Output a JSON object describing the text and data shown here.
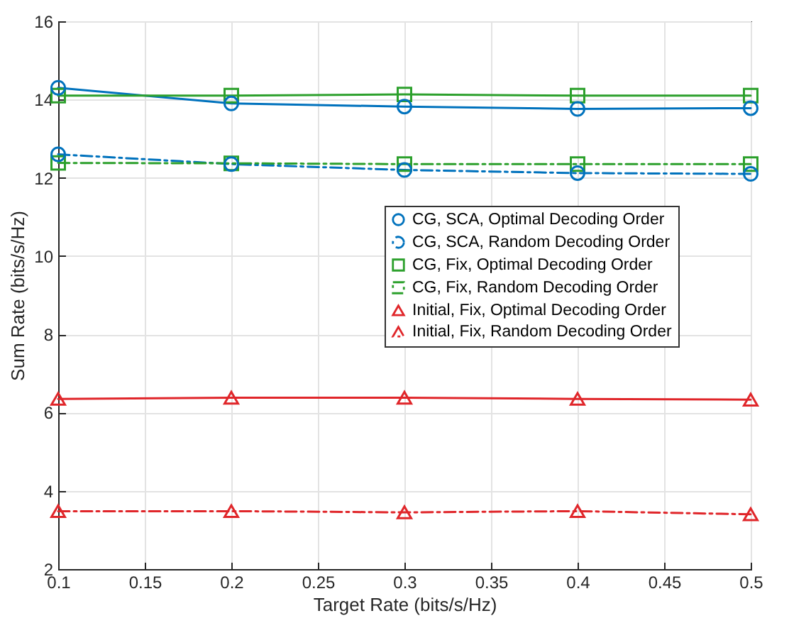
{
  "chart_data": {
    "type": "line",
    "xlabel": "Target Rate (bits/s/Hz)",
    "ylabel": "Sum Rate (bits/s/Hz)",
    "x": [
      0.1,
      0.2,
      0.3,
      0.4,
      0.5
    ],
    "series": [
      {
        "name": "CG, SCA, Optimal Decoding Order",
        "color": "#0072bd",
        "marker": "circle",
        "line_style": "solid",
        "values": [
          14.3,
          13.9,
          13.82,
          13.76,
          13.78
        ]
      },
      {
        "name": "CG, SCA, Random Decoding Order",
        "color": "#0072bd",
        "marker": "circle",
        "line_style": "dashdot",
        "values": [
          12.6,
          12.35,
          12.2,
          12.12,
          12.1
        ]
      },
      {
        "name": "CG, Fix, Optimal Decoding Order",
        "color": "#2ca02c",
        "marker": "square",
        "line_style": "solid",
        "values": [
          14.1,
          14.1,
          14.13,
          14.1,
          14.1
        ]
      },
      {
        "name": "CG, Fix, Random Decoding Order",
        "color": "#2ca02c",
        "marker": "square",
        "line_style": "dashdot",
        "values": [
          12.38,
          12.37,
          12.35,
          12.35,
          12.35
        ]
      },
      {
        "name": "Initial, Fix, Optimal Decoding Order",
        "color": "#e0262a",
        "marker": "triangle",
        "line_style": "solid",
        "values": [
          6.35,
          6.38,
          6.38,
          6.35,
          6.33
        ]
      },
      {
        "name": "Initial, Fix, Random Decoding Order",
        "color": "#e0262a",
        "marker": "triangle",
        "line_style": "dashdot",
        "values": [
          3.48,
          3.48,
          3.45,
          3.48,
          3.4
        ]
      }
    ],
    "xlim": [
      0.1,
      0.5
    ],
    "xticks": [
      0.1,
      0.15,
      0.2,
      0.25,
      0.3,
      0.35,
      0.4,
      0.45,
      0.5
    ],
    "ylim": [
      2,
      16
    ],
    "yticks": [
      2,
      4,
      6,
      8,
      10,
      12,
      14,
      16
    ],
    "grid": true,
    "legend": "right"
  }
}
